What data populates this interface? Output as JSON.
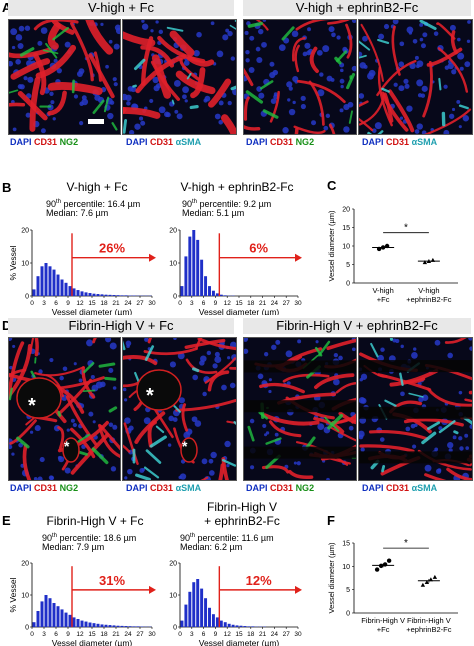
{
  "panels": {
    "A": {
      "letter": "A",
      "left_header": "V-high + Fc",
      "right_header": "V-high + ephrinB2-Fc",
      "stains": [
        {
          "dapi": "DAPI",
          "cd31": "CD31",
          "other": "NG2"
        },
        {
          "dapi": "DAPI",
          "cd31": "CD31",
          "other": "αSMA"
        },
        {
          "dapi": "DAPI",
          "cd31": "CD31",
          "other": "NG2"
        },
        {
          "dapi": "DAPI",
          "cd31": "CD31",
          "other": "αSMA"
        }
      ]
    },
    "B": {
      "letter": "B",
      "left": {
        "title": "V-high + Fc",
        "p90_label": "90",
        "p90_rest": "th percentile: 16.4 µm",
        "median": "Median: 7.6 µm",
        "arrow_pct": "26%"
      },
      "right": {
        "title": "V-high + ephrinB2-Fc",
        "p90_label": "90",
        "p90_rest": "th percentile: 9.2 µm",
        "median": "Median: 5.1 µm",
        "arrow_pct": "6%"
      }
    },
    "C": {
      "letter": "C",
      "ylabel": "Vessel diameter (µm)",
      "yticks": [
        "0",
        "5",
        "10",
        "15",
        "20"
      ],
      "groups": [
        "V-high\n+Fc",
        "V-high\n+ephrinB2-Fc"
      ],
      "group_lines": [
        [
          "V-high",
          "+Fc"
        ],
        [
          "V-high",
          "+ephrinB2-Fc"
        ]
      ],
      "sig": "*"
    },
    "D": {
      "letter": "D",
      "left_header": "Fibrin-High V + Fc",
      "right_header": "Fibrin-High V + ephrinB2-Fc",
      "stains": [
        {
          "dapi": "DAPI",
          "cd31": "CD31",
          "other": "NG2"
        },
        {
          "dapi": "DAPI",
          "cd31": "CD31",
          "other": "αSMA"
        },
        {
          "dapi": "DAPI",
          "cd31": "CD31",
          "other": "NG2"
        },
        {
          "dapi": "DAPI",
          "cd31": "CD31",
          "other": "αSMA"
        }
      ],
      "asterisk": "*"
    },
    "E": {
      "letter": "E",
      "left": {
        "title": "Fibrin-High V + Fc",
        "p90_label": "90",
        "p90_rest": "th percentile: 18.6 µm",
        "median": "Median: 7.9 µm",
        "arrow_pct": "31%"
      },
      "right": {
        "title_line1": "Fibrin-High V",
        "title_line2": "+ ephrinB2-Fc",
        "p90_label": "90",
        "p90_rest": "th percentile: 11.6 µm",
        "median": "Median: 6.2 µm",
        "arrow_pct": "12%"
      }
    },
    "F": {
      "letter": "F",
      "ylabel": "Vessel diameter (µm)",
      "yticks": [
        "0",
        "5",
        "10",
        "15"
      ],
      "group_lines": [
        [
          "Fibrin-High V",
          "+Fc"
        ],
        [
          "Fibrin-High V",
          "+ephrinB2-Fc"
        ]
      ],
      "sig": "*"
    }
  },
  "histogram_axes": {
    "ylabel": "% Vessel",
    "xlabel": "Vessel diameter (µm)",
    "xticks": [
      "0",
      "3",
      "6",
      "9",
      "12",
      "15",
      "18",
      "21",
      "24",
      "27",
      "30"
    ]
  },
  "colors": {
    "arrow": "#e0211a",
    "bars": "#1f2fc8",
    "dapi": "#1030c0",
    "cd31": "#d01010",
    "ng2": "#189018",
    "asma": "#20a0b0"
  },
  "chart_data": [
    {
      "type": "bar",
      "panel": "B-left",
      "x": [
        1,
        2,
        3,
        4,
        5,
        6,
        7,
        8,
        9,
        10,
        11,
        12,
        13,
        14,
        15,
        16,
        17,
        18,
        19,
        20,
        21,
        22,
        23,
        24,
        25,
        26,
        27,
        28,
        29,
        30
      ],
      "values": [
        2,
        6,
        9,
        10,
        9,
        8,
        6.5,
        5,
        4,
        3,
        2.3,
        1.8,
        1.4,
        1.1,
        0.9,
        0.7,
        0.6,
        0.5,
        0.4,
        0.35,
        0.3,
        0.25,
        0.2,
        0.2,
        0.15,
        0.15,
        0.1,
        0.1,
        0.1,
        0.1
      ],
      "xlim": [
        0,
        30
      ],
      "ylim": [
        0,
        20
      ]
    },
    {
      "type": "bar",
      "panel": "B-right",
      "x": [
        1,
        2,
        3,
        4,
        5,
        6,
        7,
        8,
        9,
        10,
        11,
        12,
        13,
        14,
        15,
        16,
        17,
        18,
        19,
        20,
        21,
        22,
        23,
        24,
        25,
        26,
        27,
        28,
        29,
        30
      ],
      "values": [
        3,
        12,
        18,
        20,
        17,
        11,
        6,
        3,
        1.6,
        0.8,
        0.4,
        0.2,
        0.1,
        0.1,
        0,
        0,
        0,
        0,
        0,
        0,
        0,
        0,
        0,
        0,
        0,
        0,
        0,
        0,
        0,
        0
      ],
      "xlim": [
        0,
        30
      ],
      "ylim": [
        0,
        20
      ]
    },
    {
      "type": "scatter",
      "panel": "C",
      "groups": [
        "V-high +Fc",
        "V-high +ephrinB2-Fc"
      ],
      "points": [
        [
          9.2,
          9.6,
          10.0
        ],
        [
          5.6,
          5.9,
          6.2
        ]
      ],
      "means": [
        9.6,
        5.9
      ],
      "ylim": [
        0,
        20
      ]
    },
    {
      "type": "bar",
      "panel": "E-left",
      "x": [
        1,
        2,
        3,
        4,
        5,
        6,
        7,
        8,
        9,
        10,
        11,
        12,
        13,
        14,
        15,
        16,
        17,
        18,
        19,
        20,
        21,
        22,
        23,
        24,
        25,
        26,
        27,
        28,
        29,
        30
      ],
      "values": [
        1.5,
        5,
        8,
        10,
        9,
        7.5,
        6.5,
        5.5,
        4.5,
        3.8,
        3,
        2.5,
        2,
        1.7,
        1.4,
        1.2,
        1,
        0.8,
        0.7,
        0.6,
        0.5,
        0.4,
        0.35,
        0.3,
        0.25,
        0.2,
        0.2,
        0.15,
        0.1,
        0.1
      ],
      "xlim": [
        0,
        30
      ],
      "ylim": [
        0,
        20
      ]
    },
    {
      "type": "bar",
      "panel": "E-right",
      "x": [
        1,
        2,
        3,
        4,
        5,
        6,
        7,
        8,
        9,
        10,
        11,
        12,
        13,
        14,
        15,
        16,
        17,
        18,
        19,
        20,
        21,
        22,
        23,
        24,
        25,
        26,
        27,
        28,
        29,
        30
      ],
      "values": [
        2,
        7,
        11,
        14,
        15,
        12,
        9,
        6,
        4,
        3,
        2,
        1.5,
        1,
        0.7,
        0.5,
        0.4,
        0.3,
        0.2,
        0.2,
        0.1,
        0.1,
        0.1,
        0,
        0,
        0,
        0,
        0,
        0,
        0,
        0
      ],
      "xlim": [
        0,
        30
      ],
      "ylim": [
        0,
        20
      ]
    },
    {
      "type": "scatter",
      "panel": "F",
      "groups": [
        "Fibrin-High V +Fc",
        "Fibrin-High V +ephrinB2-Fc"
      ],
      "points": [
        [
          9.3,
          10.1,
          10.4,
          11.2
        ],
        [
          6.0,
          6.6,
          7.2,
          7.7
        ]
      ],
      "means": [
        10.2,
        6.9
      ],
      "ylim": [
        0,
        15
      ]
    }
  ]
}
